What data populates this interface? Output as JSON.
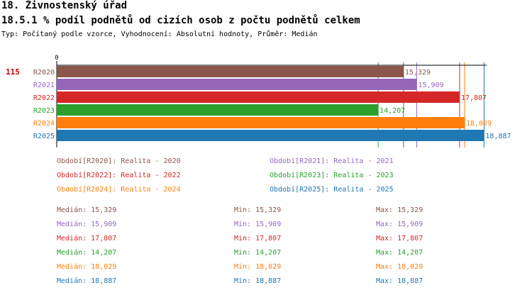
{
  "header": {
    "title": "18. Živnostenský úřad",
    "subtitle": "18.5.1 % podíl podnětů od cizích osob z počtu podnětů celkem",
    "type_line": "Typ: Počítaný podle vzorce, Vyhodnocení: Absolutní hodnoty, Průměr: Medián"
  },
  "chart_data": {
    "type": "bar",
    "orientation": "horizontal",
    "axis_zero_label": "0",
    "row_marker": "115",
    "categories": [
      "R2020",
      "R2021",
      "R2022",
      "R2023",
      "R2024",
      "R2025"
    ],
    "values": [
      15.329,
      15.909,
      17.807,
      14.207,
      18.029,
      18.887
    ],
    "value_labels": [
      "15,329",
      "15,909",
      "17,807",
      "14,207",
      "18,029",
      "18,887"
    ],
    "colors": [
      "#8c564b",
      "#9467bd",
      "#d62728",
      "#2ca02c",
      "#ff7f0e",
      "#1f77b4"
    ],
    "xlim": [
      0,
      19
    ],
    "grid": false
  },
  "legend": [
    {
      "text": "Období[R2020]: Realita - 2020",
      "color": "#8c564b"
    },
    {
      "text": "Období[R2021]: Realita - 2021",
      "color": "#9467bd"
    },
    {
      "text": "Období[R2022]: Realita - 2022",
      "color": "#d62728"
    },
    {
      "text": "Období[R2023]: Realita - 2023",
      "color": "#2ca02c"
    },
    {
      "text": "Období[R2024]: Realita - 2024",
      "color": "#ff7f0e"
    },
    {
      "text": "Období[R2025]: Realita - 2025",
      "color": "#1f77b4"
    }
  ],
  "stats": [
    {
      "median": "Medián: 15,329",
      "min": "Min: 15,329",
      "max": "Max: 15,329",
      "color": "#8c564b"
    },
    {
      "median": "Medián: 15,909",
      "min": "Min: 15,909",
      "max": "Max: 15,909",
      "color": "#9467bd"
    },
    {
      "median": "Medián: 17,807",
      "min": "Min: 17,807",
      "max": "Max: 17,807",
      "color": "#d62728"
    },
    {
      "median": "Medián: 14,207",
      "min": "Min: 14,207",
      "max": "Max: 14,207",
      "color": "#2ca02c"
    },
    {
      "median": "Medián: 18,029",
      "min": "Min: 18,029",
      "max": "Max: 18,029",
      "color": "#ff7f0e"
    },
    {
      "median": "Medián: 18,887",
      "min": "Min: 18,887",
      "max": "Max: 18,887",
      "color": "#1f77b4"
    }
  ]
}
